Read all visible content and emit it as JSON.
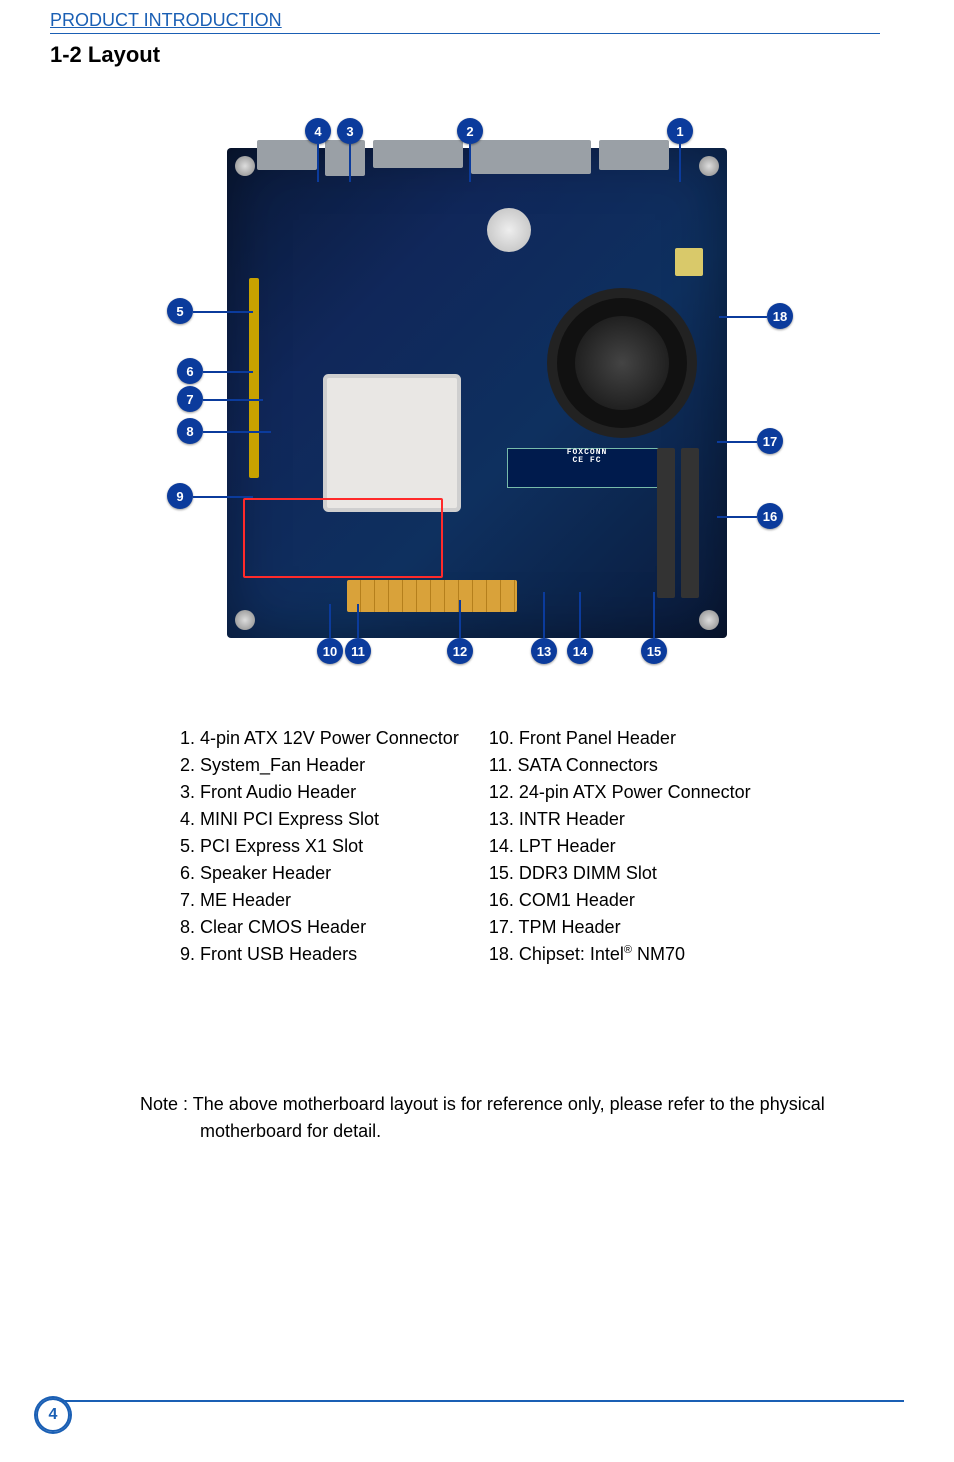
{
  "header": {
    "section_link": "PRODUCT INTRODUCTION"
  },
  "title": "1-2 Layout",
  "markers": [
    {
      "n": "1",
      "cls": "top",
      "style": "left:530px; top:10px; --len:38px;"
    },
    {
      "n": "2",
      "cls": "top",
      "style": "left:320px; top:10px; --len:38px;"
    },
    {
      "n": "3",
      "cls": "top",
      "style": "left:200px; top:10px; --len:38px;"
    },
    {
      "n": "4",
      "cls": "top",
      "style": "left:168px; top:10px; --len:38px;"
    },
    {
      "n": "5",
      "cls": "side-left",
      "style": "left:30px; top:190px; --len:60px;"
    },
    {
      "n": "6",
      "cls": "side-left",
      "style": "left:40px; top:250px; --len:50px;"
    },
    {
      "n": "7",
      "cls": "side-left",
      "style": "left:40px; top:278px; --len:60px;"
    },
    {
      "n": "8",
      "cls": "side-left",
      "style": "left:40px; top:310px; --len:68px;"
    },
    {
      "n": "9",
      "cls": "side-left",
      "style": "left:30px; top:375px; --len:60px;"
    },
    {
      "n": "10",
      "cls": "bottom",
      "style": "left:180px; top:530px; --len:34px;"
    },
    {
      "n": "11",
      "cls": "bottom",
      "style": "left:208px; top:530px; --len:34px;"
    },
    {
      "n": "12",
      "cls": "bottom",
      "style": "left:310px; top:530px; --len:38px;"
    },
    {
      "n": "13",
      "cls": "bottom",
      "style": "left:394px; top:530px; --len:46px;"
    },
    {
      "n": "14",
      "cls": "bottom",
      "style": "left:430px; top:530px; --len:46px;"
    },
    {
      "n": "15",
      "cls": "bottom",
      "style": "left:504px; top:530px; --len:46px;"
    },
    {
      "n": "16",
      "cls": "side-right",
      "style": "left:620px; top:395px; --len:40px;"
    },
    {
      "n": "17",
      "cls": "side-right",
      "style": "left:620px; top:320px; --len:40px;"
    },
    {
      "n": "18",
      "cls": "side-right",
      "style": "left:630px; top:195px; --len:48px;"
    }
  ],
  "legend_left": [
    "1. 4-pin ATX 12V Power Connector",
    "2. System_Fan Header",
    "3. Front Audio Header",
    "4. MINI PCI Express Slot",
    "5. PCI Express X1 Slot",
    "6. Speaker Header",
    "7. ME Header",
    "8. Clear CMOS Header",
    "9. Front USB Headers"
  ],
  "legend_right_pre": [
    "10. Front Panel Header",
    "11. SATA Connectors",
    "12. 24-pin ATX Power Connector",
    "13. INTR Header",
    "14. LPT Header",
    "15. DDR3 DIMM Slot",
    "16. COM1 Header",
    "17. TPM Header"
  ],
  "legend_right_chipset": {
    "prefix": "18. Chipset: Intel",
    "sup": "®",
    "suffix": " NM70"
  },
  "note": "Note : The above motherboard layout is for reference only, please refer to the physical motherboard for detail.",
  "brand": {
    "name": "FOXCONN",
    "cert": "CE FC"
  },
  "page_number": "4"
}
